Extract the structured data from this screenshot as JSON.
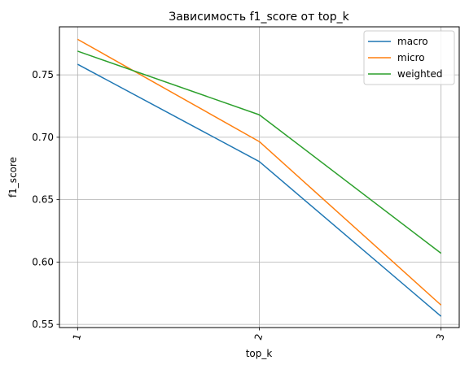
{
  "chart_data": {
    "type": "line",
    "title": "Зависимость f1_score от top_k",
    "xlabel": "top_k",
    "ylabel": "f1_score",
    "x": [
      1,
      2,
      3
    ],
    "x_tick_labels": [
      "1",
      "2",
      "3"
    ],
    "y_ticks": [
      0.55,
      0.6,
      0.65,
      0.7,
      0.75
    ],
    "y_tick_labels": [
      "0.55",
      "0.60",
      "0.65",
      "0.70",
      "0.75"
    ],
    "ylim": [
      0.5475,
      0.7885
    ],
    "xlim": [
      0.9,
      3.1
    ],
    "grid": true,
    "legend_position": "top-right",
    "series": [
      {
        "name": "macro",
        "color": "#1f77b4",
        "values": [
          0.7585,
          0.6805,
          0.5565
        ]
      },
      {
        "name": "micro",
        "color": "#ff7f0e",
        "values": [
          0.7785,
          0.6965,
          0.5655
        ]
      },
      {
        "name": "weighted",
        "color": "#2ca02c",
        "values": [
          0.769,
          0.718,
          0.607
        ]
      }
    ]
  }
}
